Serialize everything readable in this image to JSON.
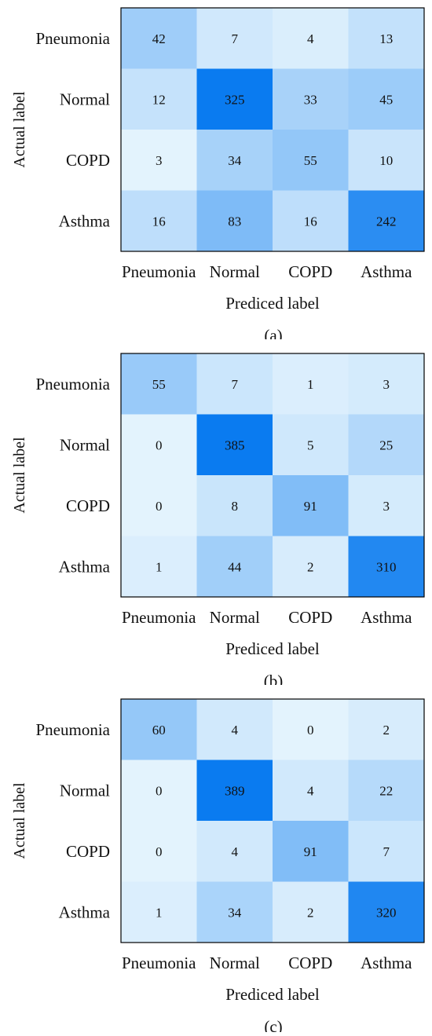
{
  "chart_data": [
    {
      "type": "heatmap",
      "caption": "(a)",
      "ylabel": "Actual label",
      "xlabel": "Prediced label",
      "rows": [
        "Pneumonia",
        "Normal",
        "COPD",
        "Asthma"
      ],
      "cols": [
        "Pneumonia",
        "Normal",
        "COPD",
        "Asthma"
      ],
      "values": [
        [
          42,
          7,
          4,
          13
        ],
        [
          12,
          325,
          33,
          45
        ],
        [
          3,
          34,
          55,
          10
        ],
        [
          16,
          83,
          16,
          242
        ]
      ]
    },
    {
      "type": "heatmap",
      "caption": "(b)",
      "ylabel": "Actual label",
      "xlabel": "Prediced label",
      "rows": [
        "Pneumonia",
        "Normal",
        "COPD",
        "Asthma"
      ],
      "cols": [
        "Pneumonia",
        "Normal",
        "COPD",
        "Asthma"
      ],
      "values": [
        [
          55,
          7,
          1,
          3
        ],
        [
          0,
          385,
          5,
          25
        ],
        [
          0,
          8,
          91,
          3
        ],
        [
          1,
          44,
          2,
          310
        ]
      ]
    },
    {
      "type": "heatmap",
      "caption": "(c)",
      "ylabel": "Actual label",
      "xlabel": "Prediced label",
      "rows": [
        "Pneumonia",
        "Normal",
        "COPD",
        "Asthma"
      ],
      "cols": [
        "Pneumonia",
        "Normal",
        "COPD",
        "Asthma"
      ],
      "values": [
        [
          60,
          4,
          0,
          2
        ],
        [
          0,
          389,
          4,
          22
        ],
        [
          0,
          4,
          91,
          7
        ],
        [
          1,
          34,
          2,
          320
        ]
      ]
    }
  ],
  "colors": {
    "low": "#e3f3fd",
    "high": "#0a7bf0"
  }
}
